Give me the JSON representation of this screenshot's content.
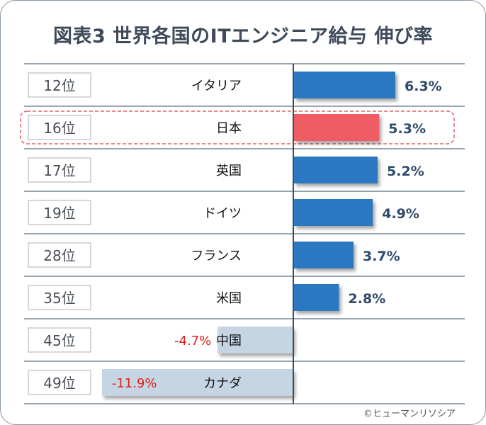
{
  "title": "図表3  世界各国のITエンジニア給与 伸び率",
  "credit": "©ヒューマンリソシア",
  "colors": {
    "positive": "#2a78c2",
    "highlight": "#ef5b64",
    "negative": "#c5d5e4",
    "negative_label": "#e0201c",
    "positive_label": "#2f4a6a",
    "grid": "#5e6e7e"
  },
  "chart_data": {
    "type": "bar",
    "orientation": "horizontal",
    "categories": [
      "イタリア",
      "日本",
      "英国",
      "ドイツ",
      "フランス",
      "米国",
      "中国",
      "カナダ"
    ],
    "ranks": [
      "12位",
      "16位",
      "17位",
      "19位",
      "28位",
      "35位",
      "45位",
      "49位"
    ],
    "values": [
      6.3,
      5.3,
      5.2,
      4.9,
      3.7,
      2.8,
      -4.7,
      -11.9
    ],
    "data_labels": [
      "6.3%",
      "5.3%",
      "5.2%",
      "4.9%",
      "3.7%",
      "2.8%",
      "-4.7%",
      "-11.9%"
    ],
    "highlight": "日本",
    "unit": "%"
  }
}
